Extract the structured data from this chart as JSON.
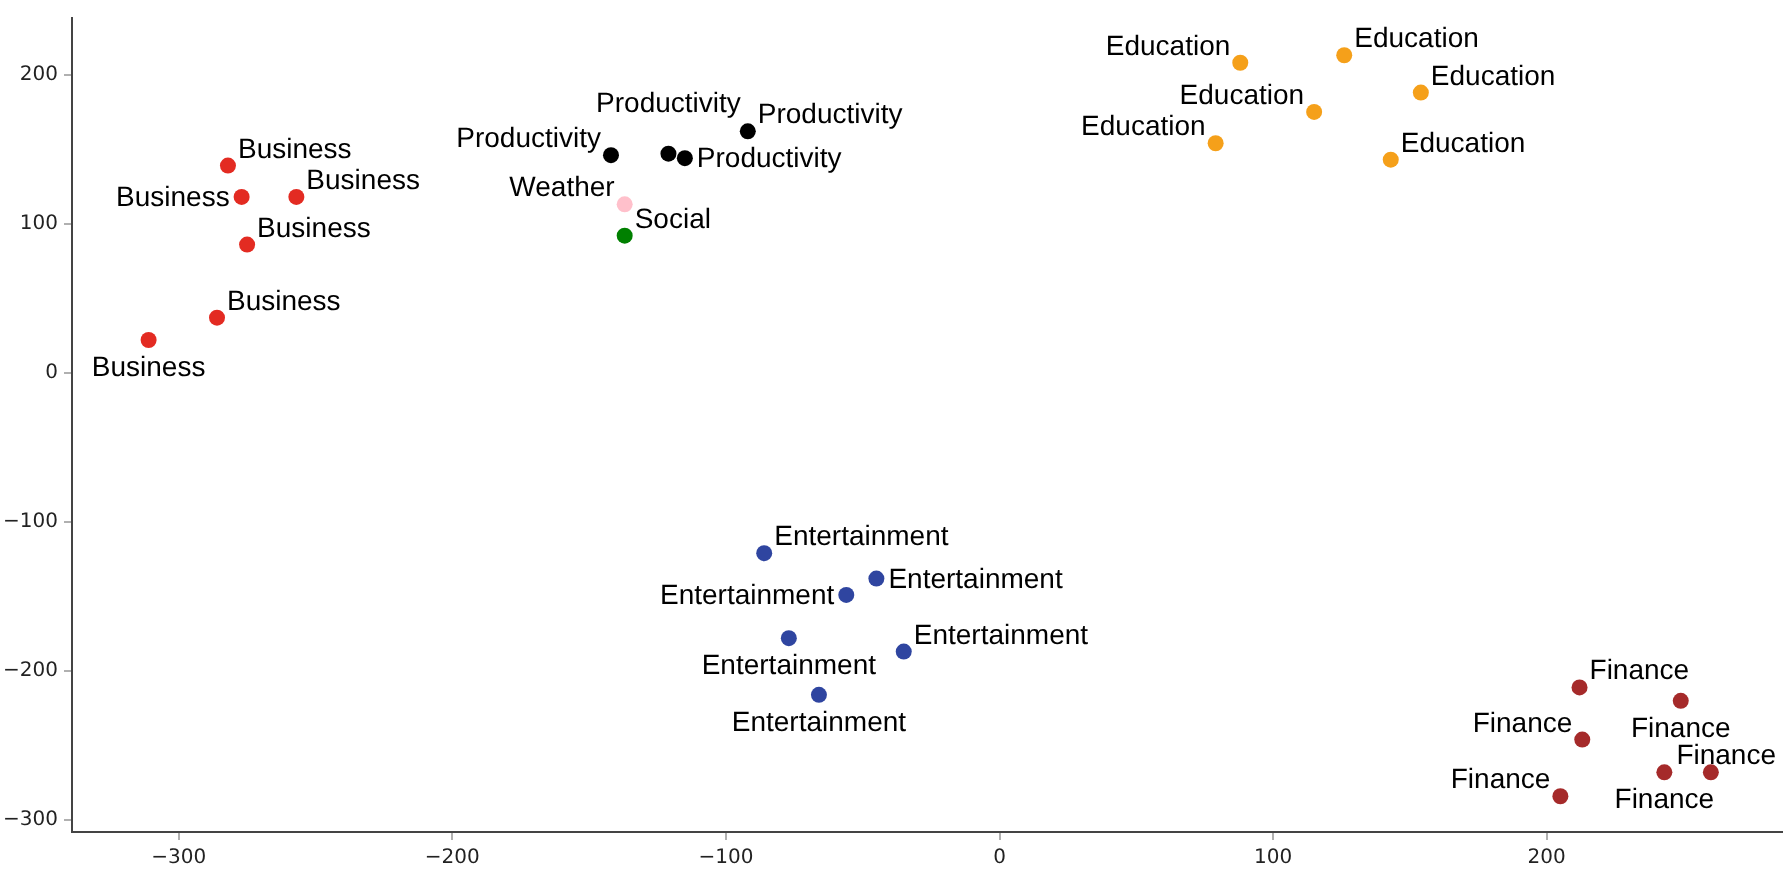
{
  "chart_data": {
    "type": "scatter",
    "xlim": [
      -339,
      286
    ],
    "ylim": [
      -308,
      238
    ],
    "xticks": [
      -300,
      -200,
      -100,
      0,
      100,
      200
    ],
    "yticks": [
      -300,
      -200,
      -100,
      0,
      100,
      200
    ],
    "grid": false,
    "legend": false,
    "marker": "circle",
    "series": [
      {
        "color": "#e32b22",
        "x": [
          -282,
          -277,
          -257,
          -275,
          -286,
          -311
        ],
        "values": [
          139,
          118,
          118,
          86,
          37,
          22
        ],
        "value_labels": [
          "Business",
          "Business",
          "Business",
          "Business",
          "Business",
          "Business"
        ]
      },
      {
        "color": "#000000",
        "x": [
          -142,
          -121,
          -115,
          -92
        ],
        "values": [
          146,
          147,
          144,
          162
        ],
        "value_labels": [
          "Productivity",
          "Productivity",
          "Productivity",
          "Productivity"
        ]
      },
      {
        "color": "#ffc0cb",
        "x": [
          -137
        ],
        "values": [
          113
        ],
        "value_labels": [
          "Weather"
        ]
      },
      {
        "color": "#008000",
        "x": [
          -137
        ],
        "values": [
          92
        ],
        "value_labels": [
          "Social"
        ]
      },
      {
        "color": "#f5a01a",
        "x": [
          88,
          126,
          154,
          115,
          79,
          143
        ],
        "values": [
          208,
          213,
          188,
          175,
          154,
          143
        ],
        "value_labels": [
          "Education",
          "Education",
          "Education",
          "Education",
          "Education",
          "Education"
        ]
      },
      {
        "color": "#2f45a0",
        "x": [
          -86,
          -56,
          -45,
          -77,
          -35,
          -66
        ],
        "values": [
          -121,
          -149,
          -138,
          -178,
          -187,
          -216
        ],
        "value_labels": [
          "Entertainment",
          "Entertainment",
          "Entertainment",
          "Entertainment",
          "Entertainment",
          "Entertainment"
        ]
      },
      {
        "color": "#a52a2a",
        "x": [
          212,
          249,
          213,
          243,
          260,
          205
        ],
        "values": [
          -211,
          -220,
          -246,
          -268,
          -268,
          -284
        ],
        "value_labels": [
          "Finance",
          "Finance",
          "Finance",
          "Finance",
          "Finance",
          "Finance"
        ]
      }
    ]
  }
}
